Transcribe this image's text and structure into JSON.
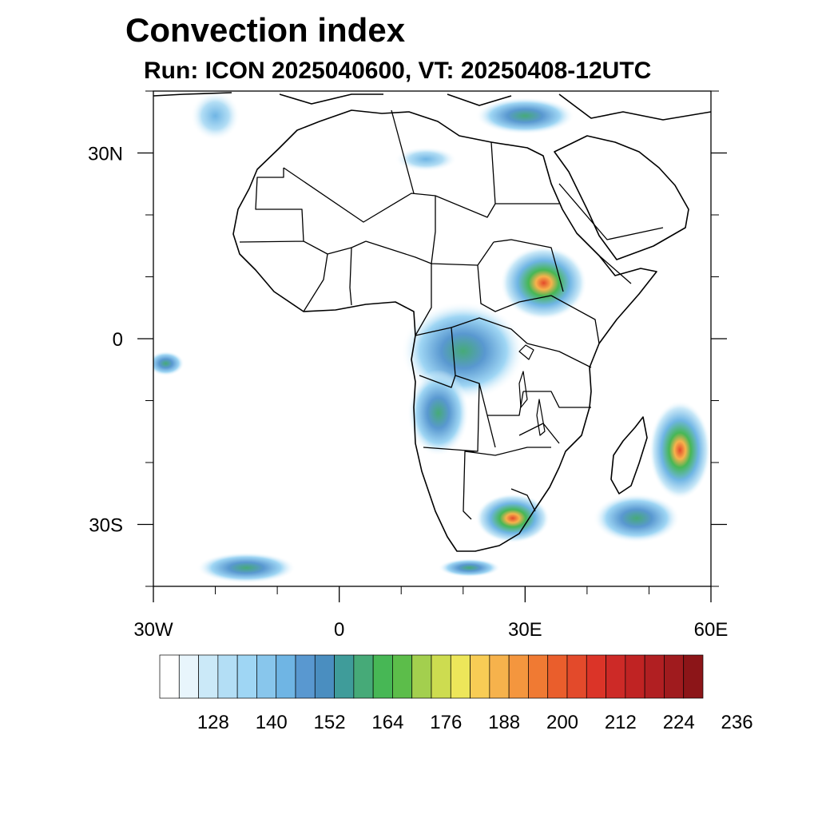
{
  "figure": {
    "title": "Convection index",
    "subtitle": "Run: ICON 2025040600,  VT: 20250408-12UTC"
  },
  "map": {
    "projection": "cylindrical equidistant",
    "lon_range": [
      -30,
      60
    ],
    "lat_range": [
      -40,
      40
    ],
    "x_ticks": [
      {
        "lon": -30,
        "label": "30W"
      },
      {
        "lon": 0,
        "label": "0"
      },
      {
        "lon": 30,
        "label": "30E"
      },
      {
        "lon": 60,
        "label": "60E"
      }
    ],
    "y_ticks": [
      {
        "lat": 30,
        "label": "30N"
      },
      {
        "lat": 0,
        "label": "0"
      },
      {
        "lat": -30,
        "label": "30S"
      }
    ]
  },
  "colorbar": {
    "colors": [
      "#ffffff",
      "#e8f5fc",
      "#cbe9f8",
      "#b3def5",
      "#9fd6f4",
      "#88c6ec",
      "#6fb5e4",
      "#5998d0",
      "#4a8ec0",
      "#3f9c9a",
      "#46aa78",
      "#47b755",
      "#5cbd4a",
      "#a3cf4e",
      "#cddc50",
      "#ede65a",
      "#f8cc55",
      "#f6b24c",
      "#f4963e",
      "#f07a33",
      "#ea5e2c",
      "#e34a2b",
      "#db3428",
      "#cd2a27",
      "#c02323",
      "#b11f22",
      "#a01b1e",
      "#8c1518"
    ],
    "tick_labels": [
      "128",
      "140",
      "152",
      "164",
      "176",
      "188",
      "200",
      "212",
      "224",
      "236"
    ],
    "tick_boundaries": [
      3,
      6,
      9,
      12,
      15,
      18,
      21,
      24,
      27,
      30
    ]
  },
  "field_regions": [
    {
      "name": "sahel-east",
      "lon": 33,
      "lat": 9,
      "rx": 7,
      "ry": 6,
      "intensity": "high"
    },
    {
      "name": "congo-basin",
      "lon": 20,
      "lat": -2,
      "rx": 10,
      "ry": 8,
      "intensity": "medium"
    },
    {
      "name": "angola",
      "lon": 16,
      "lat": -12,
      "rx": 5,
      "ry": 7,
      "intensity": "medium"
    },
    {
      "name": "south-africa",
      "lon": 28,
      "lat": -29,
      "rx": 6,
      "ry": 4,
      "intensity": "high"
    },
    {
      "name": "madagascar-east",
      "lon": 55,
      "lat": -18,
      "rx": 5,
      "ry": 8,
      "intensity": "high"
    },
    {
      "name": "indian-ocean-south",
      "lon": 48,
      "lat": -29,
      "rx": 7,
      "ry": 4,
      "intensity": "medium"
    },
    {
      "name": "atlantic-equatorial",
      "lon": -28,
      "lat": -4,
      "rx": 3,
      "ry": 2,
      "intensity": "medium"
    },
    {
      "name": "mediterranean-east",
      "lon": 30,
      "lat": 36,
      "rx": 8,
      "ry": 3,
      "intensity": "medium"
    },
    {
      "name": "libya-band",
      "lon": 14,
      "lat": 29,
      "rx": 5,
      "ry": 2,
      "intensity": "low"
    },
    {
      "name": "atlantic-north",
      "lon": -20,
      "lat": 36,
      "rx": 4,
      "ry": 4,
      "intensity": "low"
    },
    {
      "name": "south-atlantic",
      "lon": -15,
      "lat": -37,
      "rx": 8,
      "ry": 2.5,
      "intensity": "medium"
    },
    {
      "name": "cape-south",
      "lon": 21,
      "lat": -37,
      "rx": 5,
      "ry": 1.5,
      "intensity": "medium"
    }
  ]
}
